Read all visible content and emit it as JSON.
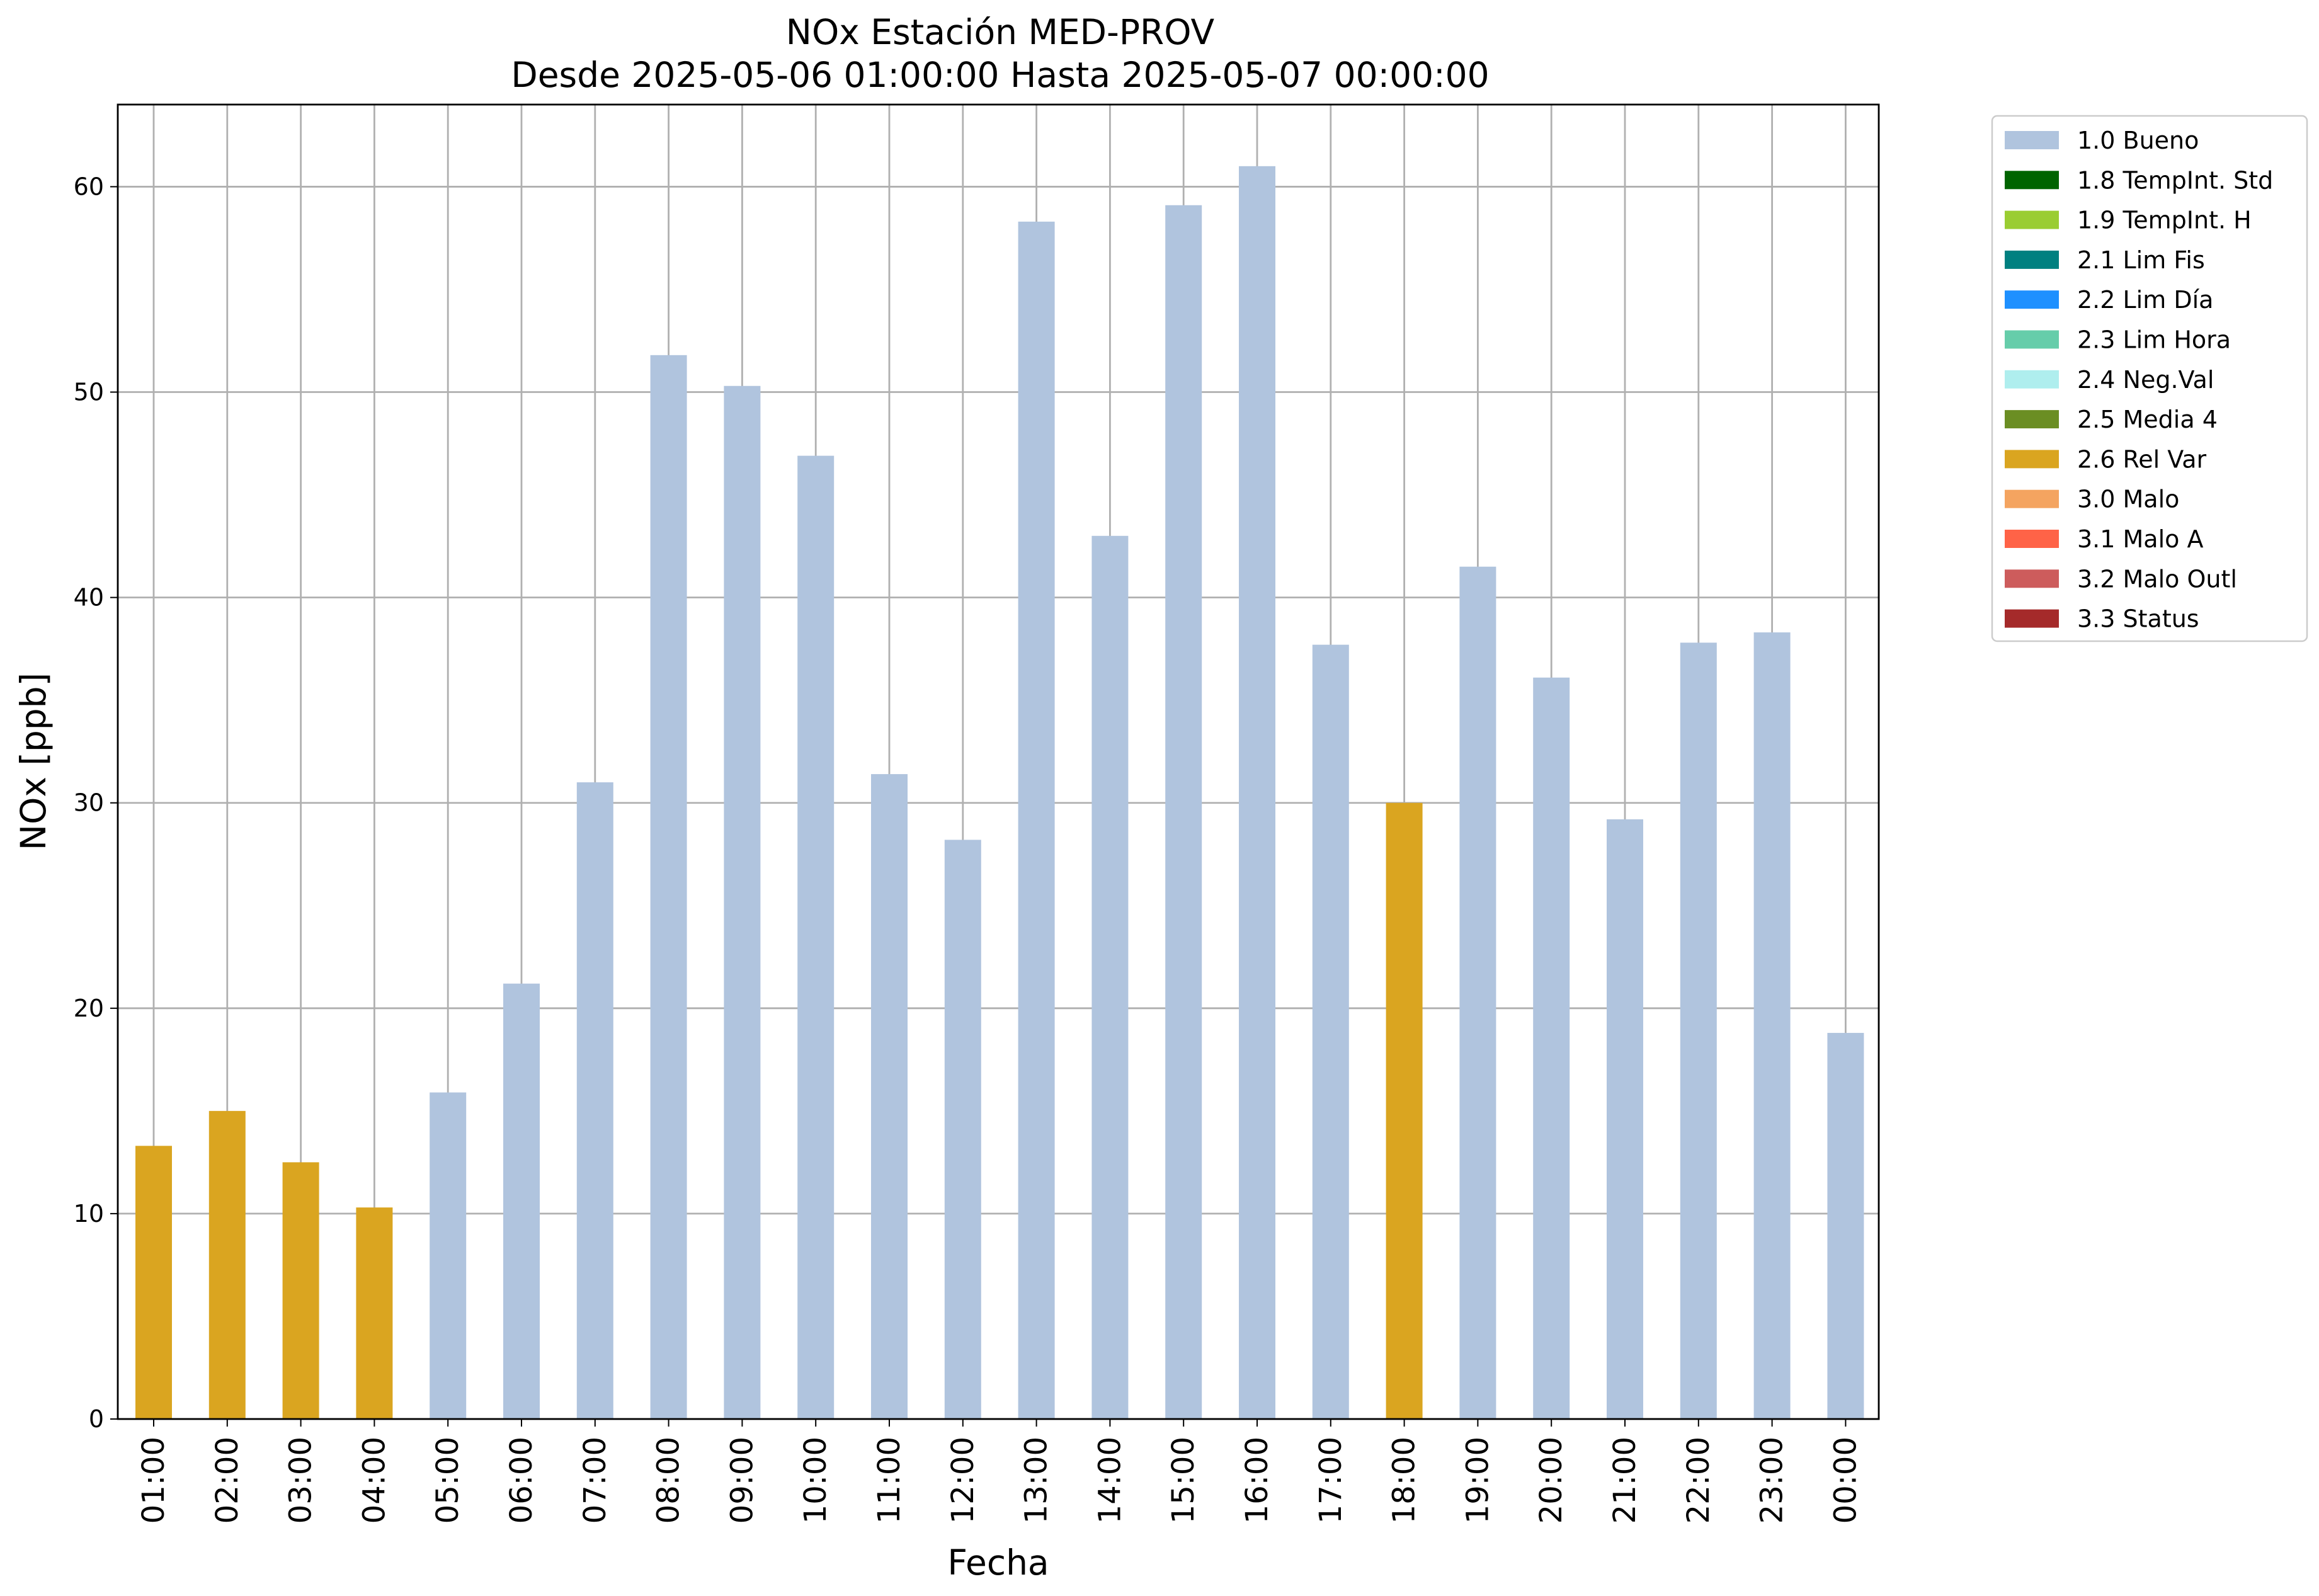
{
  "chart_data": {
    "type": "bar",
    "title": "NOx Estación MED-PROV",
    "subtitle": "Desde 2025-05-06 01:00:00 Hasta 2025-05-07 00:00:00",
    "xlabel": "Fecha",
    "ylabel": "NOx [ppb]",
    "ylim": [
      0,
      64
    ],
    "yticks": [
      0,
      10,
      20,
      30,
      40,
      50,
      60
    ],
    "grid": true,
    "legend_position": "outside-top-right",
    "categories": [
      "01:00",
      "02:00",
      "03:00",
      "04:00",
      "05:00",
      "06:00",
      "07:00",
      "08:00",
      "09:00",
      "10:00",
      "11:00",
      "12:00",
      "13:00",
      "14:00",
      "15:00",
      "16:00",
      "17:00",
      "18:00",
      "19:00",
      "20:00",
      "21:00",
      "22:00",
      "23:00",
      "00:00"
    ],
    "values": [
      13.3,
      15.0,
      12.5,
      10.3,
      15.9,
      21.2,
      31.0,
      51.8,
      50.3,
      46.9,
      31.4,
      28.2,
      58.3,
      43.0,
      59.1,
      61.0,
      37.7,
      30.0,
      41.5,
      36.1,
      29.2,
      37.8,
      38.3,
      18.8
    ],
    "flags": [
      "2.6 Rel Var",
      "2.6 Rel Var",
      "2.6 Rel Var",
      "2.6 Rel Var",
      "1.0 Bueno",
      "1.0 Bueno",
      "1.0 Bueno",
      "1.0 Bueno",
      "1.0 Bueno",
      "1.0 Bueno",
      "1.0 Bueno",
      "1.0 Bueno",
      "1.0 Bueno",
      "1.0 Bueno",
      "1.0 Bueno",
      "1.0 Bueno",
      "1.0 Bueno",
      "2.6 Rel Var",
      "1.0 Bueno",
      "1.0 Bueno",
      "1.0 Bueno",
      "1.0 Bueno",
      "1.0 Bueno",
      "1.0 Bueno"
    ],
    "legend": [
      {
        "label": "1.0 Bueno",
        "color": "#b0c4de"
      },
      {
        "label": "1.8 TempInt. Std",
        "color": "#006400"
      },
      {
        "label": "1.9 TempInt. H",
        "color": "#9acd32"
      },
      {
        "label": "2.1 Lim Fis",
        "color": "#008080"
      },
      {
        "label": "2.2 Lim Día",
        "color": "#1e90ff"
      },
      {
        "label": "2.3 Lim Hora",
        "color": "#66cdaa"
      },
      {
        "label": "2.4 Neg.Val",
        "color": "#afeeee"
      },
      {
        "label": "2.5 Media 4",
        "color": "#6b8e23"
      },
      {
        "label": "2.6 Rel Var",
        "color": "#daa520"
      },
      {
        "label": "3.0 Malo",
        "color": "#f4a460"
      },
      {
        "label": "3.1 Malo A",
        "color": "#ff6347"
      },
      {
        "label": "3.2 Malo Outl",
        "color": "#cd5c5c"
      },
      {
        "label": "3.3 Status",
        "color": "#a52a2a"
      }
    ]
  }
}
